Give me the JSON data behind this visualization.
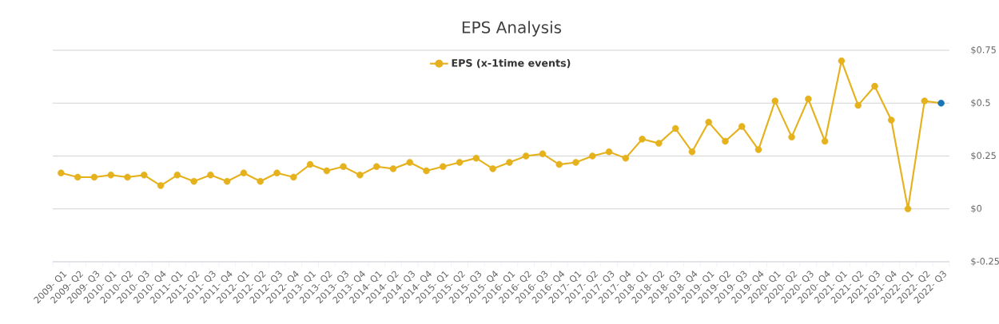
{
  "chart_data": {
    "type": "line",
    "title": "EPS Analysis",
    "categories": [
      "2009- Q1",
      "2009- Q2",
      "2009- Q3",
      "2010- Q1",
      "2010- Q2",
      "2010- Q3",
      "2010- Q4",
      "2011- Q1",
      "2011- Q2",
      "2011- Q3",
      "2011- Q4",
      "2012- Q1",
      "2012- Q2",
      "2012- Q3",
      "2012- Q4",
      "2013- Q1",
      "2013- Q2",
      "2013- Q3",
      "2013- Q4",
      "2014- Q1",
      "2014- Q2",
      "2014- Q3",
      "2014- Q4",
      "2015- Q1",
      "2015- Q2",
      "2015- Q3",
      "2015- Q4",
      "2016- Q1",
      "2016- Q2",
      "2016- Q3",
      "2016- Q4",
      "2017- Q1",
      "2017- Q2",
      "2017- Q3",
      "2017- Q4",
      "2018- Q1",
      "2018- Q2",
      "2018- Q3",
      "2018- Q4",
      "2019- Q1",
      "2019- Q2",
      "2019- Q3",
      "2019- Q4",
      "2020- Q1",
      "2020- Q2",
      "2020- Q3",
      "2020- Q4",
      "2021- Q1",
      "2021- Q2",
      "2021- Q3",
      "2021- Q4",
      "2022- Q1",
      "2022- Q2",
      "2022- Q3"
    ],
    "series": [
      {
        "name": "EPS (x-1time events)",
        "color": "#e5b11d",
        "values": [
          0.17,
          0.15,
          0.15,
          0.16,
          0.15,
          0.16,
          0.11,
          0.16,
          0.13,
          0.16,
          0.13,
          0.17,
          0.13,
          0.17,
          0.15,
          0.21,
          0.18,
          0.2,
          0.16,
          0.2,
          0.19,
          0.22,
          0.18,
          0.2,
          0.22,
          0.24,
          0.19,
          0.22,
          0.25,
          0.26,
          0.21,
          0.22,
          0.25,
          0.27,
          0.24,
          0.33,
          0.31,
          0.38,
          0.27,
          0.41,
          0.32,
          0.39,
          0.28,
          0.51,
          0.34,
          0.52,
          0.32,
          0.7,
          0.49,
          0.58,
          0.42,
          0.0,
          0.51,
          0.5
        ],
        "colors": [
          "#e5b11d",
          "#e5b11d",
          "#e5b11d",
          "#e5b11d",
          "#e5b11d",
          "#e5b11d",
          "#e5b11d",
          "#e5b11d",
          "#e5b11d",
          "#e5b11d",
          "#e5b11d",
          "#e5b11d",
          "#e5b11d",
          "#e5b11d",
          "#e5b11d",
          "#e5b11d",
          "#e5b11d",
          "#e5b11d",
          "#e5b11d",
          "#e5b11d",
          "#e5b11d",
          "#e5b11d",
          "#e5b11d",
          "#e5b11d",
          "#e5b11d",
          "#e5b11d",
          "#e5b11d",
          "#e5b11d",
          "#e5b11d",
          "#e5b11d",
          "#e5b11d",
          "#e5b11d",
          "#e5b11d",
          "#e5b11d",
          "#e5b11d",
          "#e5b11d",
          "#e5b11d",
          "#e5b11d",
          "#e5b11d",
          "#e5b11d",
          "#e5b11d",
          "#e5b11d",
          "#e5b11d",
          "#e5b11d",
          "#e5b11d",
          "#e5b11d",
          "#e5b11d",
          "#e5b11d",
          "#e5b11d",
          "#e5b11d",
          "#e5b11d",
          "#e5b11d",
          "#e5b11d",
          "#1a75b2"
        ]
      }
    ],
    "ylim": [
      -0.25,
      0.75
    ],
    "yticks": [
      {
        "value": -0.25,
        "label": "$-0.25"
      },
      {
        "value": 0,
        "label": "$0"
      },
      {
        "value": 0.25,
        "label": "$0.25"
      },
      {
        "value": 0.5,
        "label": "$0.5"
      },
      {
        "value": 0.75,
        "label": "$0.75"
      }
    ],
    "grid": "y",
    "legend": "top",
    "marker": "circle",
    "line_style": "solid"
  }
}
